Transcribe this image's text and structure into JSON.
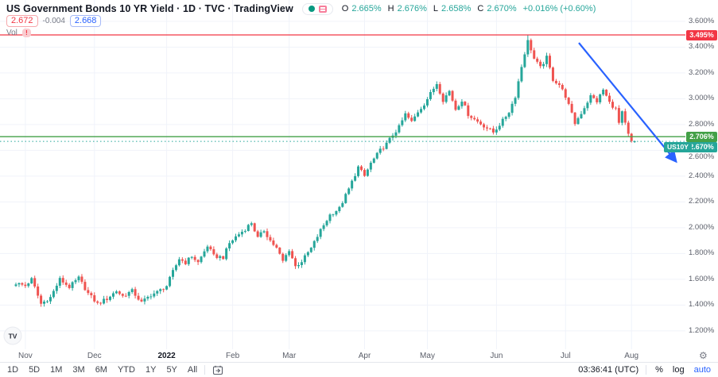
{
  "header": {
    "title": "US Government Bonds 10 YR Yield · 1D · TVC · TradingView",
    "ohlc": {
      "o_label": "O",
      "o": "2.665%",
      "h_label": "H",
      "h": "2.676%",
      "l_label": "L",
      "l": "2.658%",
      "c_label": "C",
      "c": "2.670%",
      "change": "+0.016% (+0.60%)"
    },
    "sell_price": "2.672",
    "spread": "-0.004",
    "buy_price": "2.668",
    "vol_label": "Vol",
    "vol_alert": "!"
  },
  "chart_data": {
    "type": "candlestick",
    "symbol": "US10Y",
    "timeframe": "1D",
    "visible_range": "Nov 2021 - Aug 2022",
    "ylim": [
      1.2,
      3.6
    ],
    "grid": true,
    "up_color": "#26a69a",
    "down_color": "#ef5350",
    "n_candles": 198,
    "y_ticks": [
      {
        "v": 3.6,
        "label": "3.600%"
      },
      {
        "v": 3.4,
        "label": "3.400%"
      },
      {
        "v": 3.2,
        "label": "3.200%"
      },
      {
        "v": 3.0,
        "label": "3.000%"
      },
      {
        "v": 2.8,
        "label": "2.800%"
      },
      {
        "v": 2.6,
        "label": "2.600%",
        "dy": 9
      },
      {
        "v": 2.4,
        "label": "2.400%"
      },
      {
        "v": 2.2,
        "label": "2.200%"
      },
      {
        "v": 2.0,
        "label": "2.000%"
      },
      {
        "v": 1.8,
        "label": "1.800%"
      },
      {
        "v": 1.6,
        "label": "1.600%"
      },
      {
        "v": 1.4,
        "label": "1.400%"
      },
      {
        "v": 1.2,
        "label": "1.200%"
      }
    ],
    "x_ticks": [
      {
        "i": 3,
        "label": "Nov"
      },
      {
        "i": 25,
        "label": "Dec"
      },
      {
        "i": 48,
        "label": "2022",
        "strong": true
      },
      {
        "i": 69,
        "label": "Feb"
      },
      {
        "i": 87,
        "label": "Mar"
      },
      {
        "i": 111,
        "label": "Apr"
      },
      {
        "i": 131,
        "label": "May"
      },
      {
        "i": 153,
        "label": "Jun"
      },
      {
        "i": 175,
        "label": "Jul"
      },
      {
        "i": 196,
        "label": "Aug"
      }
    ],
    "trend_waypoints": [
      [
        0,
        1.57
      ],
      [
        3,
        1.55
      ],
      [
        5,
        1.6
      ],
      [
        8,
        1.41
      ],
      [
        11,
        1.46
      ],
      [
        14,
        1.6
      ],
      [
        17,
        1.54
      ],
      [
        20,
        1.61
      ],
      [
        23,
        1.49
      ],
      [
        26,
        1.41
      ],
      [
        29,
        1.45
      ],
      [
        32,
        1.51
      ],
      [
        34,
        1.47
      ],
      [
        37,
        1.51
      ],
      [
        40,
        1.42
      ],
      [
        43,
        1.48
      ],
      [
        45,
        1.5
      ],
      [
        48,
        1.55
      ],
      [
        50,
        1.66
      ],
      [
        52,
        1.76
      ],
      [
        54,
        1.73
      ],
      [
        56,
        1.78
      ],
      [
        58,
        1.73
      ],
      [
        61,
        1.86
      ],
      [
        63,
        1.78
      ],
      [
        66,
        1.77
      ],
      [
        68,
        1.88
      ],
      [
        70,
        1.93
      ],
      [
        73,
        1.99
      ],
      [
        75,
        2.04
      ],
      [
        77,
        1.92
      ],
      [
        79,
        1.98
      ],
      [
        81,
        1.9
      ],
      [
        83,
        1.84
      ],
      [
        85,
        1.74
      ],
      [
        87,
        1.83
      ],
      [
        89,
        1.7
      ],
      [
        91,
        1.74
      ],
      [
        94,
        1.84
      ],
      [
        97,
        1.98
      ],
      [
        100,
        2.1
      ],
      [
        103,
        2.15
      ],
      [
        106,
        2.3
      ],
      [
        109,
        2.47
      ],
      [
        111,
        2.4
      ],
      [
        113,
        2.5
      ],
      [
        116,
        2.6
      ],
      [
        118,
        2.65
      ],
      [
        120,
        2.72
      ],
      [
        122,
        2.78
      ],
      [
        124,
        2.88
      ],
      [
        126,
        2.82
      ],
      [
        128,
        2.9
      ],
      [
        130,
        2.96
      ],
      [
        132,
        3.04
      ],
      [
        134,
        3.12
      ],
      [
        136,
        2.99
      ],
      [
        138,
        3.06
      ],
      [
        140,
        2.92
      ],
      [
        142,
        2.99
      ],
      [
        144,
        2.88
      ],
      [
        146,
        2.84
      ],
      [
        149,
        2.79
      ],
      [
        152,
        2.74
      ],
      [
        155,
        2.83
      ],
      [
        157,
        2.9
      ],
      [
        159,
        3.02
      ],
      [
        161,
        3.25
      ],
      [
        163,
        3.46
      ],
      [
        165,
        3.31
      ],
      [
        167,
        3.24
      ],
      [
        169,
        3.32
      ],
      [
        171,
        3.15
      ],
      [
        173,
        3.11
      ],
      [
        175,
        3.02
      ],
      [
        178,
        2.81
      ],
      [
        180,
        2.89
      ],
      [
        183,
        3.02
      ],
      [
        185,
        2.98
      ],
      [
        187,
        3.07
      ],
      [
        189,
        2.97
      ],
      [
        191,
        2.92
      ],
      [
        192,
        2.81
      ],
      [
        193,
        2.89
      ],
      [
        195,
        2.72
      ],
      [
        197,
        2.67
      ]
    ],
    "last_candle": {
      "open": 2.665,
      "high": 2.676,
      "low": 2.658,
      "close": 2.67
    },
    "levels": [
      {
        "value": 3.495,
        "label": "3.495%",
        "color": "#f23645",
        "style": "solid",
        "kind": "resistance-line"
      },
      {
        "value": 2.706,
        "label": "2.706%",
        "color": "#43a047",
        "style": "solid",
        "kind": "support-line"
      },
      {
        "value": 2.67,
        "label": "2.670%",
        "color": "#26a69a",
        "style": "dotted",
        "kind": "last-price-line",
        "badge": "US10Y"
      }
    ],
    "annotation_arrow": {
      "x1": 728,
      "y1": 54,
      "x2": 849,
      "y2": 202,
      "color": "#2962ff"
    },
    "watermark_text": "TV"
  },
  "time_axis": {
    "gear_icon": "⚙"
  },
  "toolbar": {
    "ranges": [
      "1D",
      "5D",
      "1M",
      "3M",
      "6M",
      "YTD",
      "1Y",
      "5Y",
      "All"
    ],
    "clock": "03:36:41 (UTC)",
    "percent_label": "%",
    "log_label": "log",
    "auto_label": "auto"
  }
}
